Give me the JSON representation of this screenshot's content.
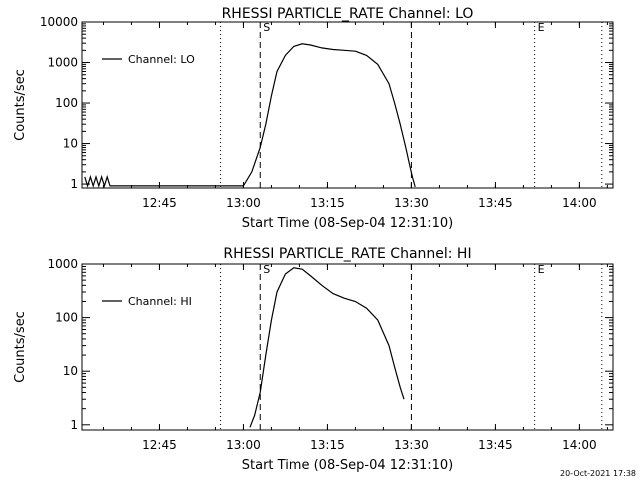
{
  "timestamp": "20-Oct-2021 17:38",
  "chart_data": [
    {
      "type": "line",
      "title": "RHESSI PARTICLE_RATE Channel: LO",
      "xlabel": "Start Time (08-Sep-04 12:31:10)",
      "ylabel": "Counts/sec",
      "yscale": "log",
      "ylim": [
        0.8,
        10000
      ],
      "xlim": [
        "12:31:10",
        "14:06:00"
      ],
      "x_ticks": [
        "12:45",
        "13:00",
        "13:15",
        "13:30",
        "13:45",
        "14:00"
      ],
      "y_ticks": [
        "1",
        "10",
        "100",
        "1000",
        "10000"
      ],
      "grid": false,
      "legend": "top-left",
      "series": [
        {
          "name": "Channel: LO",
          "points": [
            [
              "12:31:40",
              1.5
            ],
            [
              "12:32:10",
              0.9
            ],
            [
              "12:32:40",
              1.5
            ],
            [
              "12:33:10",
              0.9
            ],
            [
              "12:33:40",
              1.5
            ],
            [
              "12:34:10",
              0.9
            ],
            [
              "12:34:40",
              1.5
            ],
            [
              "12:35:10",
              0.9
            ],
            [
              "12:35:40",
              1.5
            ],
            [
              "12:36:10",
              0.9
            ],
            [
              "13:00:00",
              0.9
            ],
            [
              "13:01:30",
              2
            ],
            [
              "13:03:00",
              8
            ],
            [
              "13:04:00",
              30
            ],
            [
              "13:05:00",
              150
            ],
            [
              "13:06:00",
              600
            ],
            [
              "13:07:30",
              1500
            ],
            [
              "13:09:00",
              2500
            ],
            [
              "13:10:30",
              2900
            ],
            [
              "13:12:00",
              2700
            ],
            [
              "13:14:00",
              2300
            ],
            [
              "13:16:00",
              2100
            ],
            [
              "13:18:00",
              2000
            ],
            [
              "13:20:00",
              1900
            ],
            [
              "13:22:00",
              1500
            ],
            [
              "13:24:00",
              900
            ],
            [
              "13:26:00",
              300
            ],
            [
              "13:27:00",
              100
            ],
            [
              "13:28:00",
              30
            ],
            [
              "13:29:00",
              8
            ],
            [
              "13:29:40",
              3
            ],
            [
              "13:30:10",
              1.5
            ],
            [
              "13:30:40",
              0.85
            ]
          ]
        }
      ],
      "markers": [
        {
          "time": "12:55:55",
          "style": "dotted",
          "label": ""
        },
        {
          "time": "13:03:00",
          "style": "dashed",
          "label": "S"
        },
        {
          "time": "13:30:00",
          "style": "dashed",
          "label": ""
        },
        {
          "time": "13:52:00",
          "style": "dotted",
          "label": "E"
        },
        {
          "time": "14:04:00",
          "style": "dotted",
          "label": ""
        }
      ]
    },
    {
      "type": "line",
      "title": "RHESSI PARTICLE_RATE Channel: HI",
      "xlabel": "Start Time (08-Sep-04 12:31:10)",
      "ylabel": "Counts/sec",
      "yscale": "log",
      "ylim": [
        0.8,
        1000
      ],
      "xlim": [
        "12:31:10",
        "14:06:00"
      ],
      "x_ticks": [
        "12:45",
        "13:00",
        "13:15",
        "13:30",
        "13:45",
        "14:00"
      ],
      "y_ticks": [
        "1",
        "10",
        "100",
        "1000"
      ],
      "grid": false,
      "legend": "top-left",
      "series": [
        {
          "name": "Channel: HI",
          "points": [
            [
              "13:01:10",
              0.9
            ],
            [
              "13:02:00",
              1.5
            ],
            [
              "13:03:00",
              4
            ],
            [
              "13:04:00",
              20
            ],
            [
              "13:05:00",
              90
            ],
            [
              "13:06:00",
              300
            ],
            [
              "13:07:30",
              650
            ],
            [
              "13:09:00",
              850
            ],
            [
              "13:10:30",
              800
            ],
            [
              "13:12:00",
              600
            ],
            [
              "13:14:00",
              400
            ],
            [
              "13:16:00",
              280
            ],
            [
              "13:18:00",
              230
            ],
            [
              "13:20:00",
              200
            ],
            [
              "13:22:00",
              150
            ],
            [
              "13:24:00",
              90
            ],
            [
              "13:26:00",
              30
            ],
            [
              "13:27:00",
              12
            ],
            [
              "13:28:00",
              5
            ],
            [
              "13:28:40",
              3
            ]
          ]
        }
      ],
      "markers": [
        {
          "time": "12:55:55",
          "style": "dotted",
          "label": ""
        },
        {
          "time": "13:03:00",
          "style": "dashed",
          "label": "S"
        },
        {
          "time": "13:30:00",
          "style": "dashed",
          "label": ""
        },
        {
          "time": "13:52:00",
          "style": "dotted",
          "label": "E"
        },
        {
          "time": "14:04:00",
          "style": "dotted",
          "label": ""
        }
      ]
    }
  ]
}
